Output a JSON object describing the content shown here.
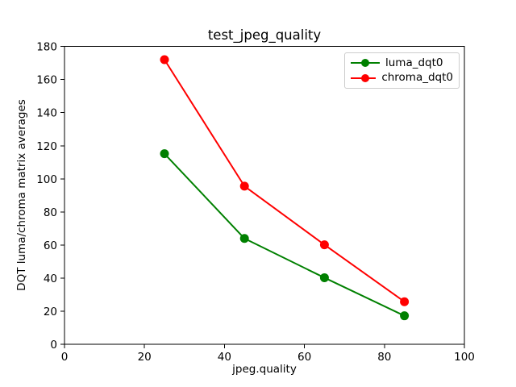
{
  "window": {
    "background_color": "#ffffff"
  },
  "chart_data": {
    "type": "line",
    "title": "test_jpeg_quality",
    "xlabel": "jpeg.quality",
    "ylabel": "DQT luma/chroma matrix averages",
    "x": [
      25,
      45,
      65,
      85
    ],
    "series": [
      {
        "name": "luma_dqt0",
        "color": "#008000",
        "marker": "circle",
        "values": [
          115.2,
          64.0,
          40.3,
          17.3
        ]
      },
      {
        "name": "chroma_dqt0",
        "color": "#ff0000",
        "marker": "circle",
        "values": [
          172.0,
          95.6,
          60.2,
          25.8
        ]
      }
    ],
    "xlim": [
      0,
      100
    ],
    "ylim": [
      0,
      180
    ],
    "x_ticks": [
      0,
      20,
      40,
      60,
      80,
      100
    ],
    "y_ticks": [
      0,
      20,
      40,
      60,
      80,
      100,
      120,
      140,
      160,
      180
    ],
    "grid": false,
    "legend": {
      "position": "upper right",
      "border_color": "#cccccc",
      "background_color": "#ffffff"
    },
    "axis_color": "#000000",
    "text_color": "#000000"
  }
}
